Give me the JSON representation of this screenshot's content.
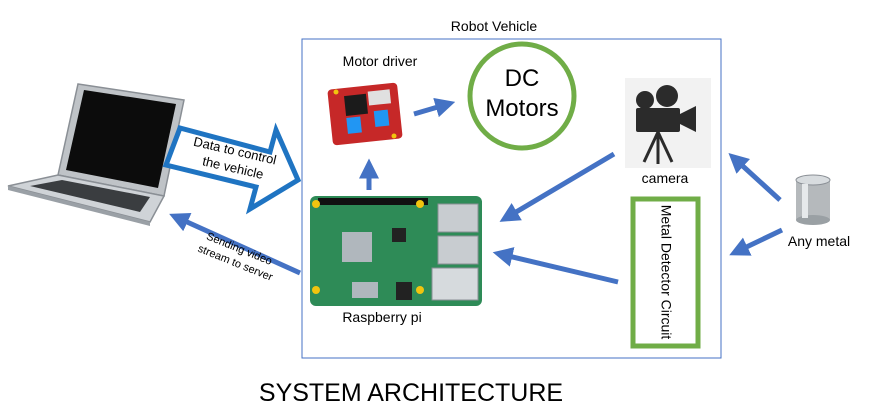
{
  "title": "SYSTEM ARCHITECTURE",
  "vehicle_label": "Robot Vehicle",
  "motor_driver_label": "Motor driver",
  "dc_motors": {
    "line1": "DC",
    "line2": "Motors"
  },
  "camera_label": "camera",
  "raspberry_label": "Raspberry pi",
  "metal_detector_label": "Metal Detector Circuit",
  "any_metal_label": "Any metal",
  "control_arrow": {
    "line1": "Data to control",
    "line2": "the vehicle"
  },
  "video_label": {
    "line1": "Sending video",
    "line2": "stream to server"
  },
  "colors": {
    "arrow": "#4472c4",
    "box_border": "#4472c4",
    "green_border": "#70ad47",
    "pcb": "#2e8b57",
    "motor_board": "#c62828"
  },
  "icons": [
    "laptop-icon",
    "motor-driver-board-icon",
    "movie-camera-icon",
    "raspberry-pi-board-icon",
    "metal-can-icon"
  ]
}
